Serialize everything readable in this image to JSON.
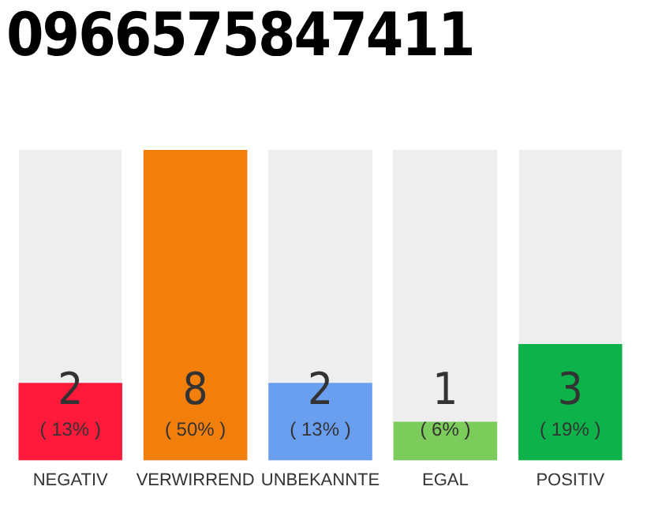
{
  "chart_data": {
    "type": "bar",
    "title": "0966575847411",
    "categories": [
      "NEGATIV",
      "VERWIRREND",
      "UNBEKANNTE",
      "EGAL",
      "POSITIV"
    ],
    "values": [
      2,
      8,
      2,
      1,
      3
    ],
    "colors": [
      "#ff1a3c",
      "#f27e0c",
      "#6a9ff0",
      "#7ccc5c",
      "#0db34a"
    ],
    "ylim": [
      0,
      8
    ],
    "tick_labels": "x",
    "grid": false,
    "legend": false,
    "data_labels": true,
    "annotations": [
      {
        "text": "( 13% )",
        "x": "NEGATIV",
        "y": 0
      },
      {
        "text": "( 50% )",
        "x": "VERWIRREND",
        "y": 0
      },
      {
        "text": "( 13% )",
        "x": "UNBEKANNTE",
        "y": 0
      },
      {
        "text": "( 6% )",
        "x": "EGAL",
        "y": 0
      },
      {
        "text": "( 19% )",
        "x": "POSITIV",
        "y": 0
      }
    ]
  }
}
